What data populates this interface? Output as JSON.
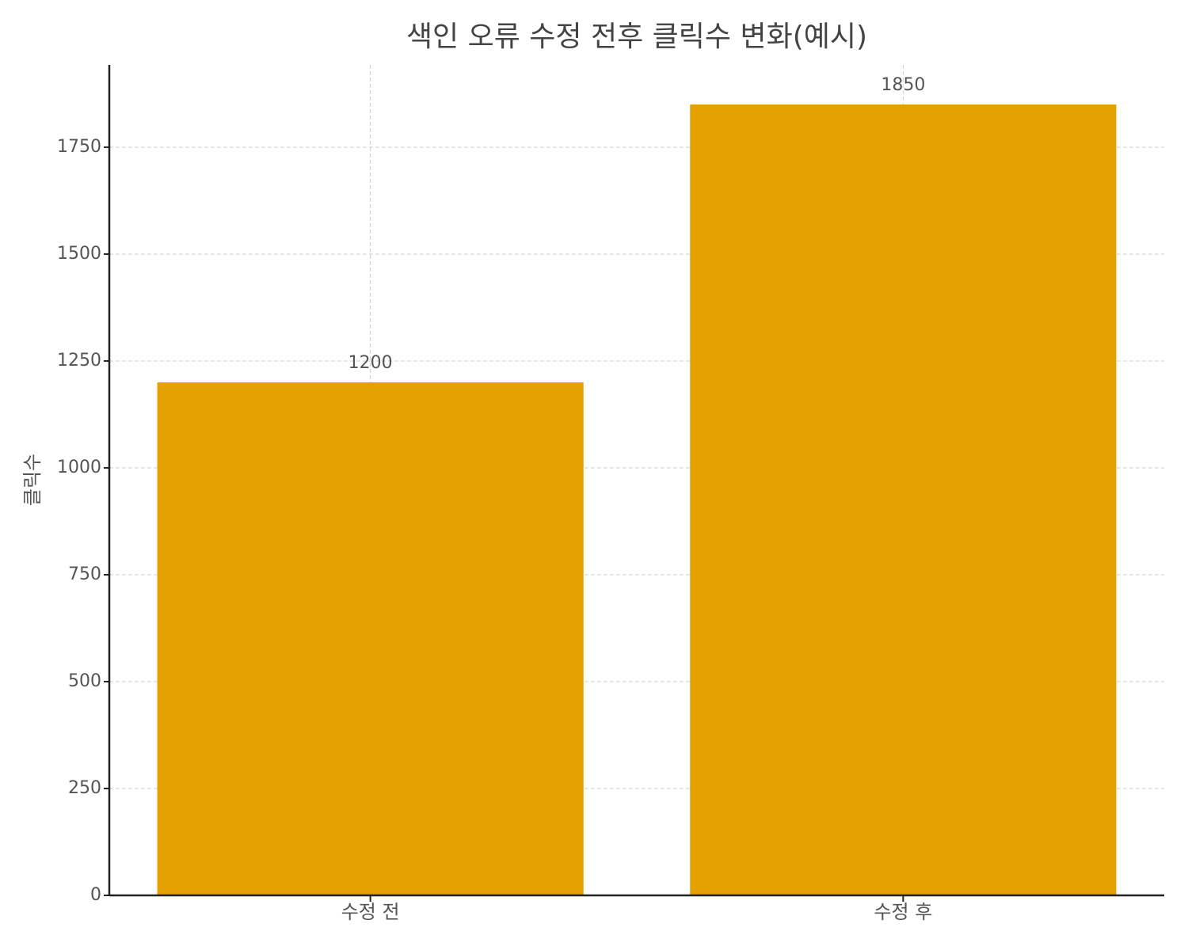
{
  "chart_data": {
    "type": "bar",
    "title": "색인 오류 수정 전후 클릭수 변화(예시)",
    "y_label": "클릭수",
    "categories": [
      "수정 전",
      "수정 후"
    ],
    "values": [
      1200,
      1850
    ],
    "color": "#e3a000",
    "ylim": [
      0,
      1942.5
    ],
    "yticks": [
      0,
      250,
      500,
      750,
      1000,
      1250,
      1500,
      1750
    ],
    "grid": true
  }
}
